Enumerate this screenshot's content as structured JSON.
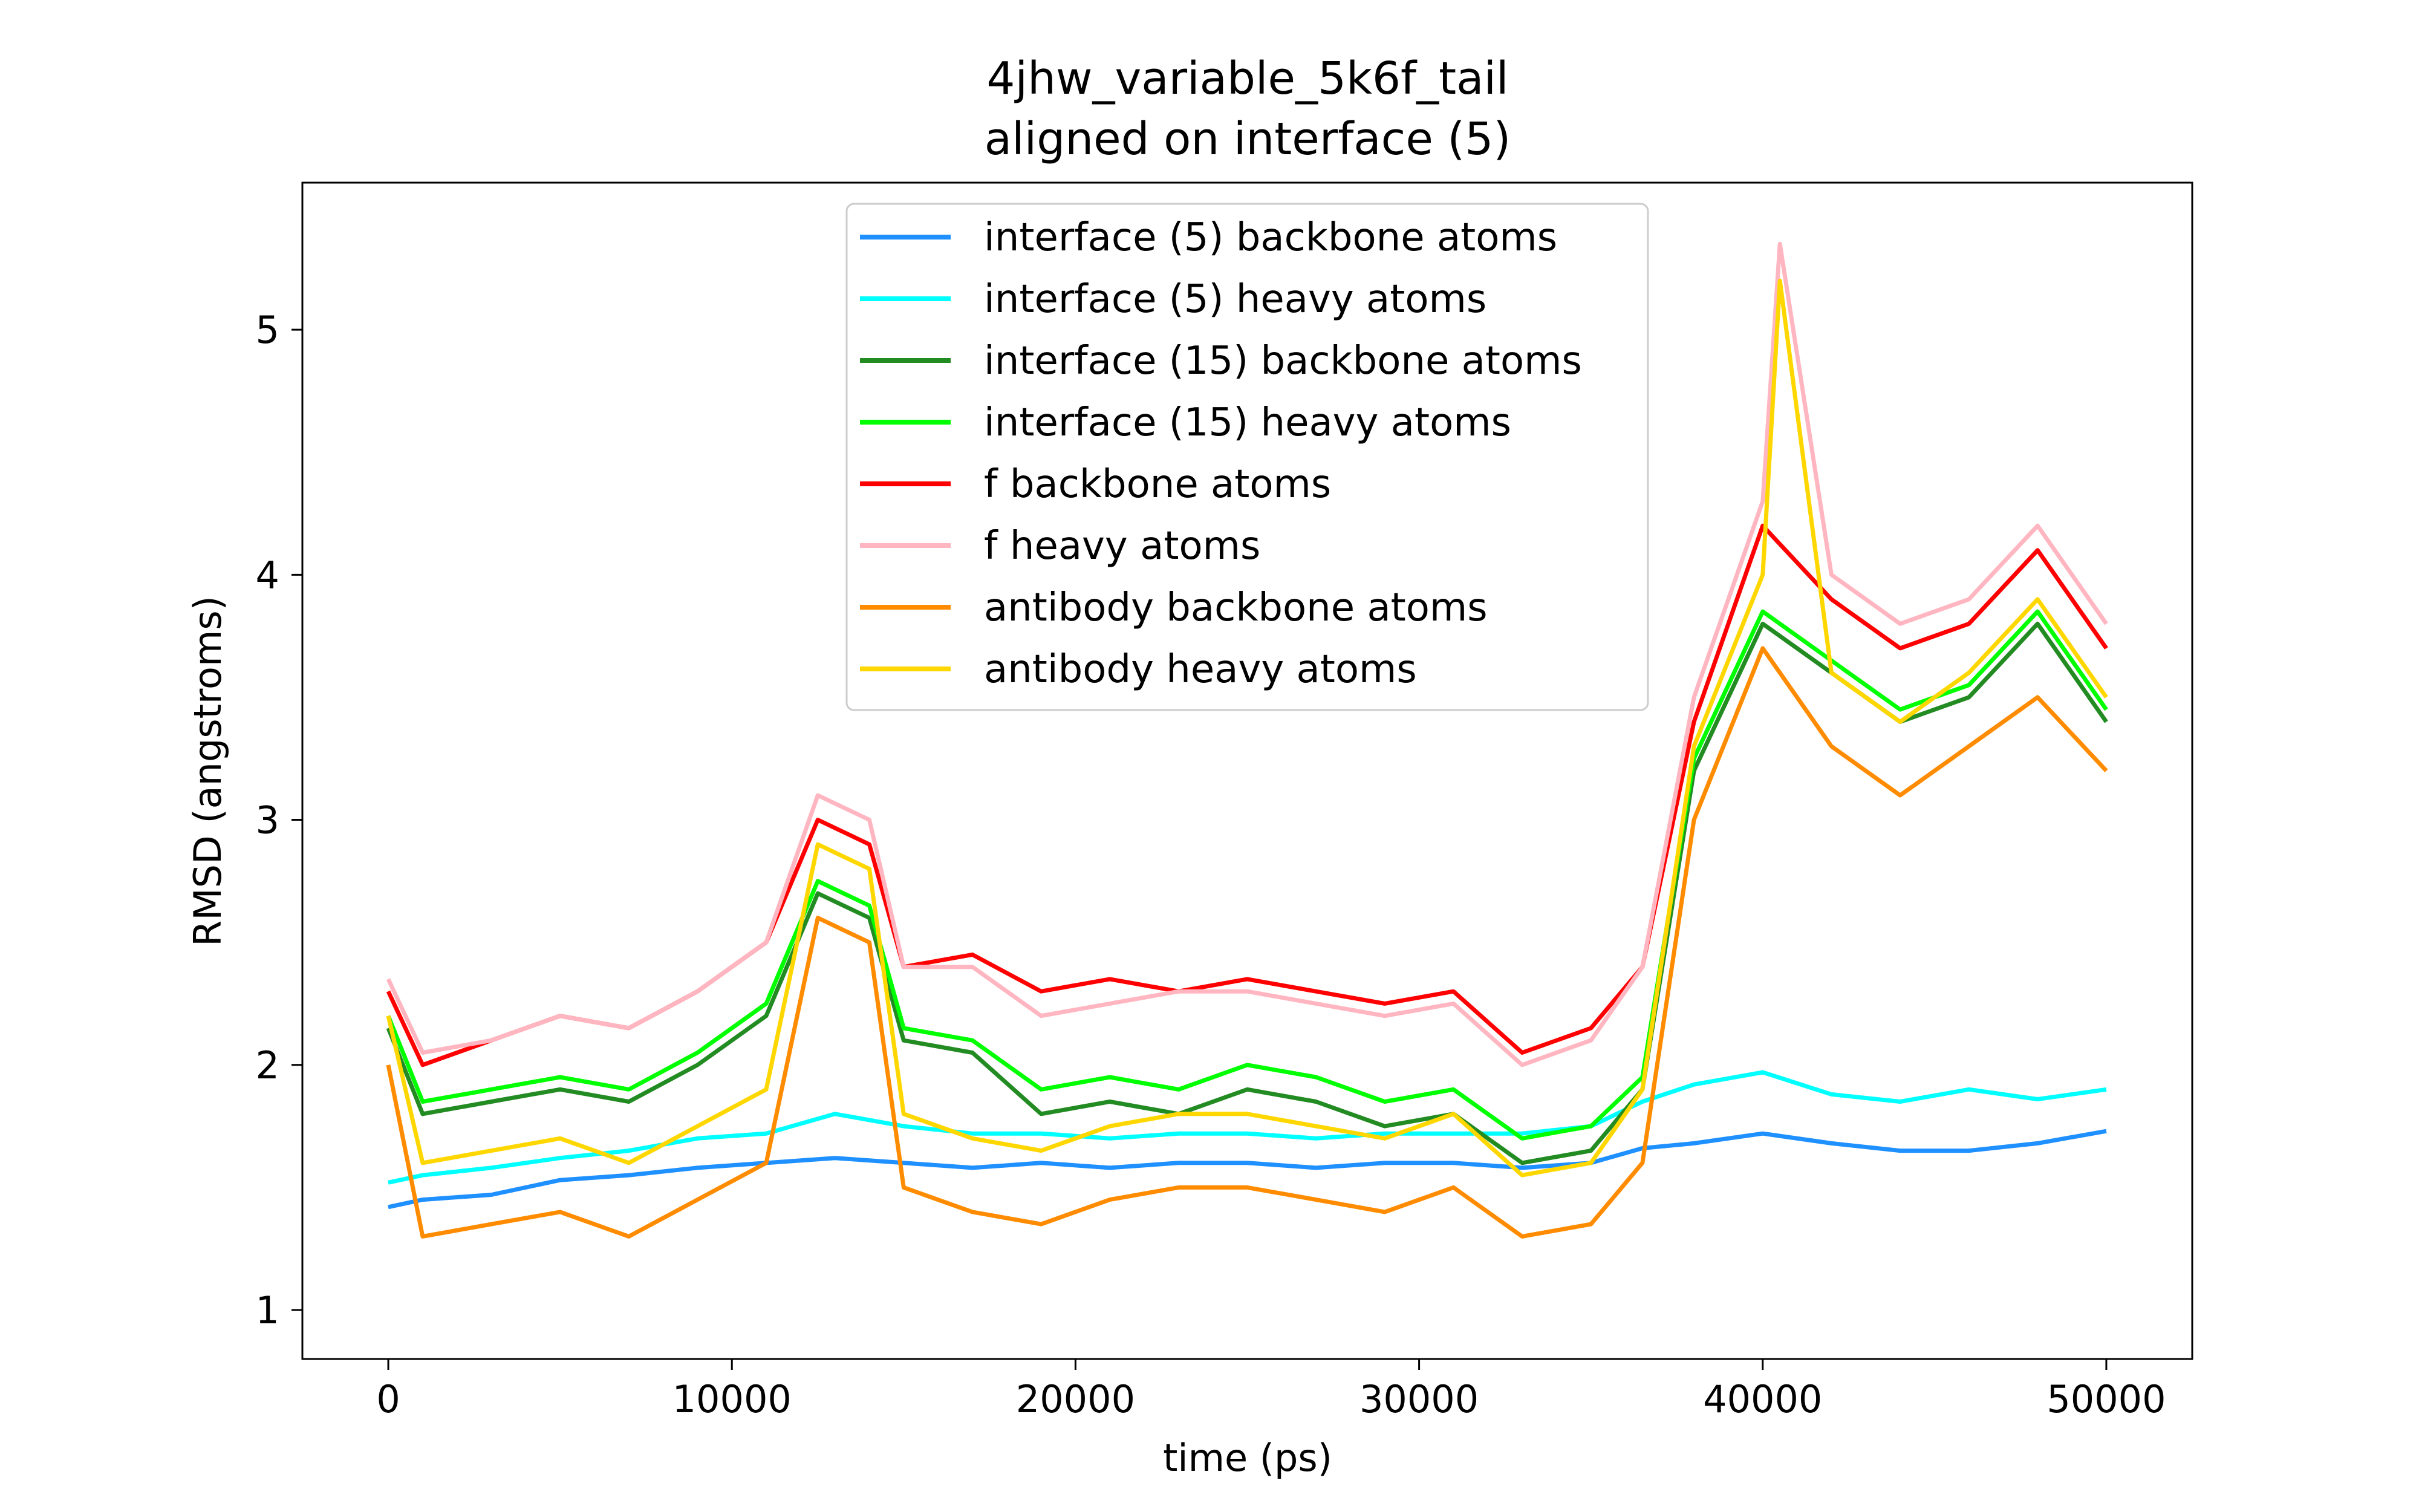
{
  "chart_data": {
    "type": "line",
    "title": "4jhw_variable_5k6f_tail",
    "subtitle": "aligned on interface (5)",
    "xlabel": "time (ps)",
    "ylabel": "RMSD (angstroms)",
    "xlim": [
      -2500,
      52500
    ],
    "ylim": [
      0.8,
      5.6
    ],
    "xticks": [
      0,
      10000,
      20000,
      30000,
      40000,
      50000
    ],
    "xtick_labels": [
      "0",
      "10000",
      "20000",
      "30000",
      "40000",
      "50000"
    ],
    "yticks": [
      1,
      2,
      3,
      4,
      5
    ],
    "ytick_labels": [
      "1",
      "2",
      "3",
      "4",
      "5"
    ],
    "grid": false,
    "legend_position": "top-center",
    "series": [
      {
        "name": "interface (5) backbone atoms",
        "color": "#1e90ff",
        "x": [
          0,
          1000,
          3000,
          5000,
          7000,
          9000,
          11000,
          13000,
          15000,
          17000,
          19000,
          21000,
          23000,
          25000,
          27000,
          29000,
          31000,
          33000,
          35000,
          36500,
          38000,
          40000,
          42000,
          44000,
          46000,
          48000,
          50000
        ],
        "values": [
          1.42,
          1.45,
          1.47,
          1.53,
          1.55,
          1.58,
          1.6,
          1.62,
          1.6,
          1.58,
          1.6,
          1.58,
          1.6,
          1.6,
          1.58,
          1.6,
          1.6,
          1.58,
          1.6,
          1.66,
          1.68,
          1.72,
          1.68,
          1.65,
          1.65,
          1.68,
          1.73
        ]
      },
      {
        "name": "interface (5) heavy atoms",
        "color": "#00ffff",
        "x": [
          0,
          1000,
          3000,
          5000,
          7000,
          9000,
          11000,
          13000,
          15000,
          17000,
          19000,
          21000,
          23000,
          25000,
          27000,
          29000,
          31000,
          33000,
          35000,
          36500,
          38000,
          40000,
          42000,
          44000,
          46000,
          48000,
          50000
        ],
        "values": [
          1.52,
          1.55,
          1.58,
          1.62,
          1.65,
          1.7,
          1.72,
          1.8,
          1.75,
          1.72,
          1.72,
          1.7,
          1.72,
          1.72,
          1.7,
          1.72,
          1.72,
          1.72,
          1.75,
          1.85,
          1.92,
          1.97,
          1.88,
          1.85,
          1.9,
          1.86,
          1.9
        ]
      },
      {
        "name": "interface (15) backbone atoms",
        "color": "#228b22",
        "x": [
          0,
          1000,
          3000,
          5000,
          7000,
          9000,
          11000,
          12500,
          14000,
          15000,
          17000,
          19000,
          21000,
          23000,
          25000,
          27000,
          29000,
          31000,
          33000,
          35000,
          36500,
          38000,
          40000,
          42000,
          44000,
          46000,
          48000,
          50000
        ],
        "values": [
          2.15,
          1.8,
          1.85,
          1.9,
          1.85,
          2.0,
          2.2,
          2.7,
          2.6,
          2.1,
          2.05,
          1.8,
          1.85,
          1.8,
          1.9,
          1.85,
          1.75,
          1.8,
          1.6,
          1.65,
          1.9,
          3.2,
          3.8,
          3.6,
          3.4,
          3.5,
          3.8,
          3.4
        ]
      },
      {
        "name": "interface (15) heavy atoms",
        "color": "#00ff00",
        "x": [
          0,
          1000,
          3000,
          5000,
          7000,
          9000,
          11000,
          12500,
          14000,
          15000,
          17000,
          19000,
          21000,
          23000,
          25000,
          27000,
          29000,
          31000,
          33000,
          35000,
          36500,
          38000,
          40000,
          42000,
          44000,
          46000,
          48000,
          50000
        ],
        "values": [
          2.2,
          1.85,
          1.9,
          1.95,
          1.9,
          2.05,
          2.25,
          2.75,
          2.65,
          2.15,
          2.1,
          1.9,
          1.95,
          1.9,
          2.0,
          1.95,
          1.85,
          1.9,
          1.7,
          1.75,
          1.95,
          3.25,
          3.85,
          3.65,
          3.45,
          3.55,
          3.85,
          3.45
        ]
      },
      {
        "name": "f backbone atoms",
        "color": "#ff0000",
        "x": [
          0,
          1000,
          3000,
          5000,
          7000,
          9000,
          11000,
          12500,
          14000,
          15000,
          17000,
          19000,
          21000,
          23000,
          25000,
          27000,
          29000,
          31000,
          33000,
          35000,
          36500,
          38000,
          40000,
          42000,
          44000,
          46000,
          48000,
          50000
        ],
        "values": [
          2.3,
          2.0,
          2.1,
          2.2,
          2.15,
          2.3,
          2.5,
          3.0,
          2.9,
          2.4,
          2.45,
          2.3,
          2.35,
          2.3,
          2.35,
          2.3,
          2.25,
          2.3,
          2.05,
          2.15,
          2.4,
          3.4,
          4.2,
          3.9,
          3.7,
          3.8,
          4.1,
          3.7
        ]
      },
      {
        "name": "f heavy atoms",
        "color": "#ffb6c1",
        "x": [
          0,
          1000,
          3000,
          5000,
          7000,
          9000,
          11000,
          12500,
          14000,
          15000,
          17000,
          19000,
          21000,
          23000,
          25000,
          27000,
          29000,
          31000,
          33000,
          35000,
          36500,
          38000,
          40000,
          40500,
          42000,
          44000,
          46000,
          48000,
          50000
        ],
        "values": [
          2.35,
          2.05,
          2.1,
          2.2,
          2.15,
          2.3,
          2.5,
          3.1,
          3.0,
          2.4,
          2.4,
          2.2,
          2.25,
          2.3,
          2.3,
          2.25,
          2.2,
          2.25,
          2.0,
          2.1,
          2.4,
          3.5,
          4.3,
          5.35,
          4.0,
          3.8,
          3.9,
          4.2,
          3.8
        ]
      },
      {
        "name": "antibody backbone atoms",
        "color": "#ff8c00",
        "x": [
          0,
          1000,
          3000,
          5000,
          7000,
          9000,
          11000,
          12500,
          14000,
          15000,
          17000,
          19000,
          21000,
          23000,
          25000,
          27000,
          29000,
          31000,
          33000,
          35000,
          36500,
          38000,
          40000,
          42000,
          44000,
          46000,
          48000,
          50000
        ],
        "values": [
          2.0,
          1.3,
          1.35,
          1.4,
          1.3,
          1.45,
          1.6,
          2.6,
          2.5,
          1.5,
          1.4,
          1.35,
          1.45,
          1.5,
          1.5,
          1.45,
          1.4,
          1.5,
          1.3,
          1.35,
          1.6,
          3.0,
          3.7,
          3.3,
          3.1,
          3.3,
          3.5,
          3.2
        ]
      },
      {
        "name": "antibody heavy atoms",
        "color": "#ffd700",
        "x": [
          0,
          1000,
          3000,
          5000,
          7000,
          9000,
          11000,
          12500,
          14000,
          15000,
          17000,
          19000,
          21000,
          23000,
          25000,
          27000,
          29000,
          31000,
          33000,
          35000,
          36500,
          38000,
          40000,
          40500,
          42000,
          44000,
          46000,
          48000,
          50000
        ],
        "values": [
          2.2,
          1.6,
          1.65,
          1.7,
          1.6,
          1.75,
          1.9,
          2.9,
          2.8,
          1.8,
          1.7,
          1.65,
          1.75,
          1.8,
          1.8,
          1.75,
          1.7,
          1.8,
          1.55,
          1.6,
          1.9,
          3.3,
          4.0,
          5.2,
          3.6,
          3.4,
          3.6,
          3.9,
          3.5
        ]
      }
    ]
  }
}
